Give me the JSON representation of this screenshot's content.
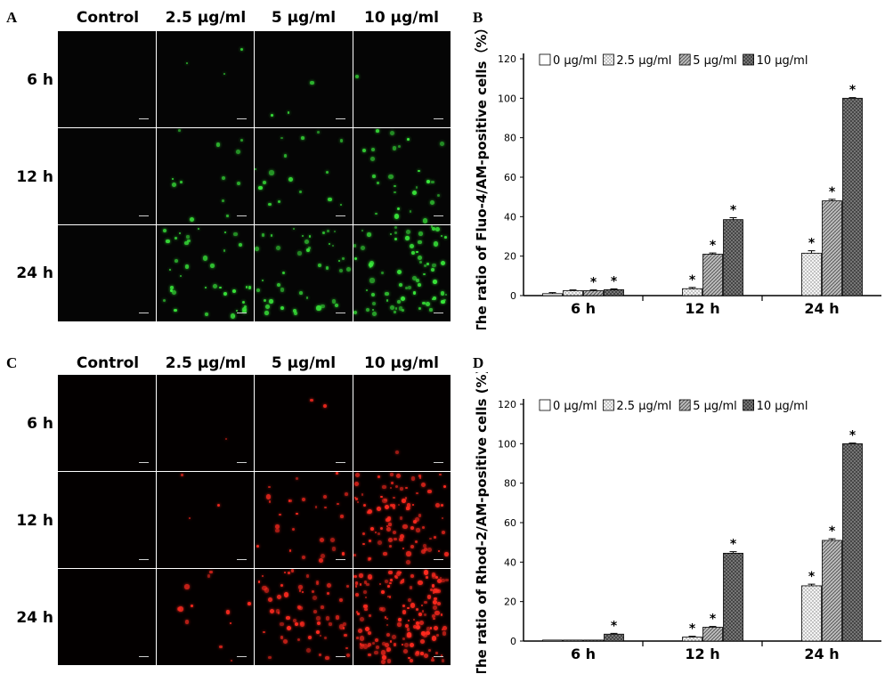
{
  "panels": {
    "A": {
      "letter": "A",
      "columns": [
        "Control",
        "2.5 μg/ml",
        "5 μg/ml",
        "10 μg/ml"
      ],
      "rows": [
        "6 h",
        "12 h",
        "24 h"
      ],
      "stain_color": "#39e83a",
      "cell_density": [
        [
          0,
          3,
          3,
          1
        ],
        [
          0,
          12,
          16,
          26
        ],
        [
          0,
          38,
          40,
          70
        ]
      ]
    },
    "C": {
      "letter": "C",
      "columns": [
        "Control",
        "2.5 μg/ml",
        "5 μg/ml",
        "10 μg/ml"
      ],
      "rows": [
        "6 h",
        "12 h",
        "24 h"
      ],
      "stain_color": "#ff2a1f",
      "cell_density": [
        [
          0,
          1,
          2,
          1
        ],
        [
          0,
          3,
          28,
          90
        ],
        [
          0,
          12,
          60,
          150
        ]
      ]
    },
    "B": {
      "letter": "B"
    },
    "D": {
      "letter": "D"
    }
  },
  "chart_data": [
    {
      "type": "bar",
      "panel": "B",
      "categories": [
        "6 h",
        "12 h",
        "24 h"
      ],
      "series": [
        {
          "name": "0 μg/ml",
          "values": [
            1,
            0,
            0
          ],
          "errors": [
            0.5,
            0,
            0
          ],
          "fill": "#ffffff",
          "pattern": "plain"
        },
        {
          "name": "2.5 μg/ml",
          "values": [
            2.5,
            3.5,
            21.5
          ],
          "errors": [
            0.4,
            0.6,
            1.2
          ],
          "fill": "#dcdcdc",
          "pattern": "dots"
        },
        {
          "name": "5 μg/ml",
          "values": [
            2.5,
            21,
            48
          ],
          "errors": [
            0.4,
            0.6,
            0.8
          ],
          "fill": "#a9a9a9",
          "pattern": "hatch"
        },
        {
          "name": "10 μg/ml",
          "values": [
            3,
            38.5,
            100
          ],
          "errors": [
            0.4,
            1.0,
            0.3
          ],
          "fill": "#5a5a5a",
          "pattern": "cross"
        }
      ],
      "significance": [
        [
          false,
          false,
          false
        ],
        [
          false,
          true,
          true
        ],
        [
          true,
          true,
          true
        ],
        [
          true,
          true,
          true
        ]
      ],
      "significance_mark": "*",
      "ylabel": "The ratio of Fluo-4/AM-positive cells（%）",
      "yticks": [
        0,
        20,
        40,
        60,
        80,
        100,
        120
      ],
      "ylim": [
        0,
        120
      ],
      "legend_position": "top"
    },
    {
      "type": "bar",
      "panel": "D",
      "categories": [
        "6 h",
        "12 h",
        "24 h"
      ],
      "series": [
        {
          "name": "0 μg/ml",
          "values": [
            0.5,
            0,
            0
          ],
          "errors": [
            0,
            0,
            0
          ],
          "fill": "#ffffff",
          "pattern": "plain"
        },
        {
          "name": "2.5 μg/ml",
          "values": [
            0.5,
            2,
            28
          ],
          "errors": [
            0,
            0.4,
            0.8
          ],
          "fill": "#dcdcdc",
          "pattern": "dots"
        },
        {
          "name": "5 μg/ml",
          "values": [
            0.5,
            7,
            51
          ],
          "errors": [
            0,
            0.4,
            0.8
          ],
          "fill": "#a9a9a9",
          "pattern": "hatch"
        },
        {
          "name": "10 μg/ml",
          "values": [
            3.5,
            44.5,
            100
          ],
          "errors": [
            0.4,
            0.8,
            0.3
          ],
          "fill": "#5a5a5a",
          "pattern": "cross"
        }
      ],
      "significance": [
        [
          false,
          false,
          false
        ],
        [
          false,
          true,
          true
        ],
        [
          false,
          true,
          true
        ],
        [
          true,
          true,
          true
        ]
      ],
      "significance_mark": "*",
      "ylabel": "The ratio of Rhod-2/AM-positive cells (%)",
      "yticks": [
        0,
        20,
        40,
        60,
        80,
        100,
        120
      ],
      "ylim": [
        0,
        120
      ],
      "legend_position": "top"
    }
  ]
}
